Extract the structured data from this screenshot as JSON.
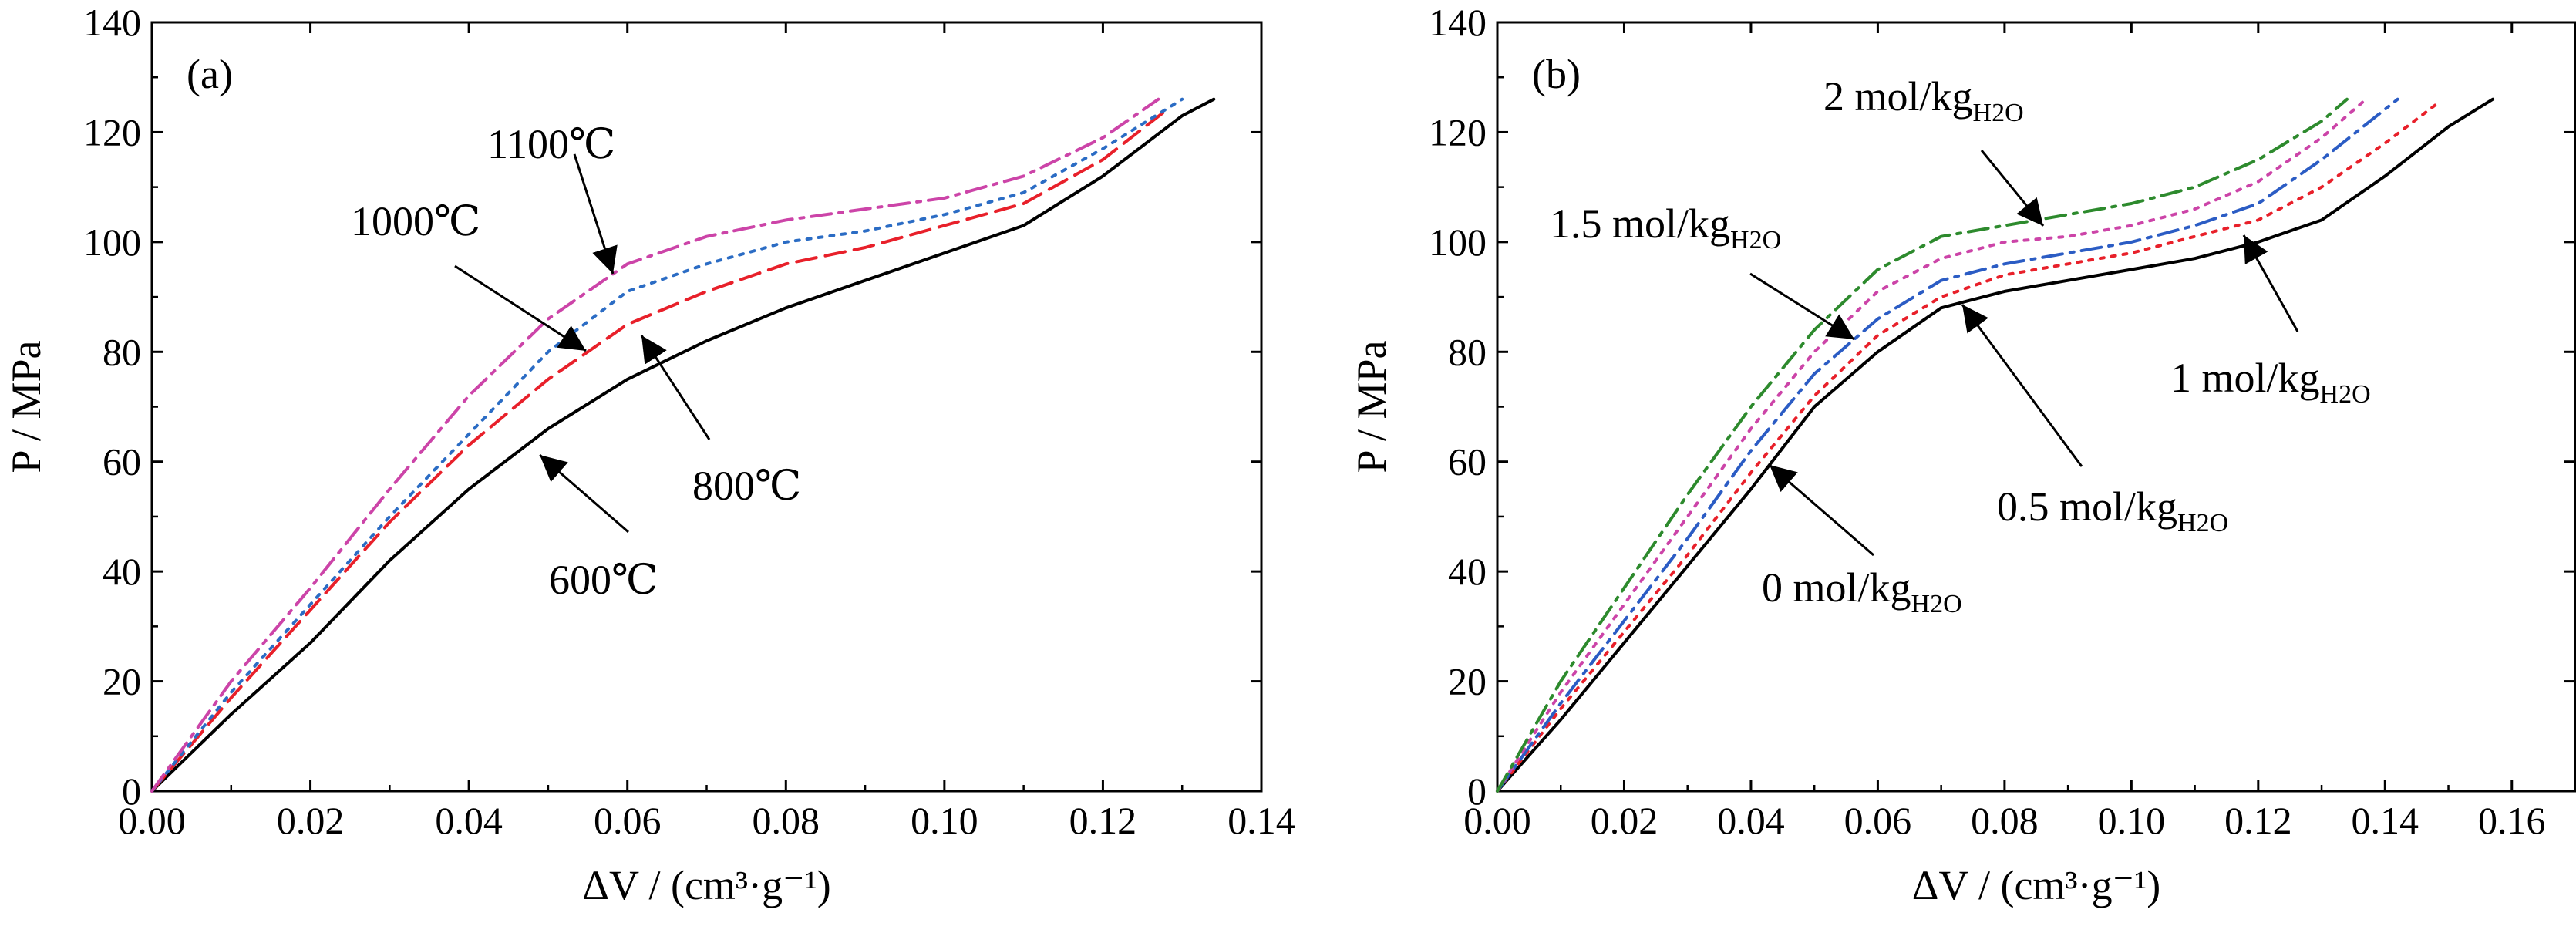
{
  "chart_data": [
    {
      "type": "line",
      "panel_label": "(a)",
      "xlabel": "ΔV / (cm³·g⁻¹)",
      "ylabel": "P / MPa",
      "xlim": [
        0,
        0.14
      ],
      "ylim": [
        0,
        140
      ],
      "xticks": [
        "0.00",
        "0.02",
        "0.04",
        "0.06",
        "0.08",
        "0.10",
        "0.12",
        "0.14"
      ],
      "yticks": [
        "0",
        "20",
        "40",
        "60",
        "80",
        "100",
        "120",
        "140"
      ],
      "grid": false,
      "series": [
        {
          "name": "600℃",
          "color": "#000000",
          "dash": "solid",
          "x": [
            0,
            0.01,
            0.02,
            0.03,
            0.04,
            0.05,
            0.06,
            0.07,
            0.08,
            0.09,
            0.1,
            0.11,
            0.12,
            0.13,
            0.134
          ],
          "y": [
            0,
            14,
            27,
            42,
            55,
            66,
            75,
            82,
            88,
            93,
            98,
            103,
            112,
            123,
            126
          ]
        },
        {
          "name": "800℃",
          "color": "#e8202a",
          "dash": "dash",
          "x": [
            0,
            0.01,
            0.02,
            0.03,
            0.04,
            0.05,
            0.06,
            0.07,
            0.08,
            0.09,
            0.1,
            0.11,
            0.12,
            0.128
          ],
          "y": [
            0,
            17,
            33,
            49,
            63,
            75,
            85,
            91,
            96,
            99,
            103,
            107,
            115,
            124
          ]
        },
        {
          "name": "1000℃",
          "color": "#2b6cc4",
          "dash": "dot",
          "x": [
            0,
            0.01,
            0.02,
            0.03,
            0.04,
            0.05,
            0.06,
            0.07,
            0.08,
            0.09,
            0.1,
            0.11,
            0.12,
            0.13
          ],
          "y": [
            0,
            18,
            34,
            50,
            65,
            80,
            91,
            96,
            100,
            102,
            105,
            109,
            117,
            126
          ]
        },
        {
          "name": "1100℃",
          "color": "#cc44a8",
          "dash": "dashdot",
          "x": [
            0,
            0.01,
            0.02,
            0.03,
            0.04,
            0.05,
            0.06,
            0.07,
            0.08,
            0.09,
            0.1,
            0.11,
            0.12,
            0.127
          ],
          "y": [
            0,
            20,
            37,
            55,
            72,
            86,
            96,
            101,
            104,
            106,
            108,
            112,
            119,
            126
          ]
        }
      ],
      "annotations": [
        {
          "text": "1100℃",
          "series": "1100℃"
        },
        {
          "text": "1000℃",
          "series": "1000℃"
        },
        {
          "text": "800℃",
          "series": "800℃"
        },
        {
          "text": "600℃",
          "series": "600℃"
        }
      ]
    },
    {
      "type": "line",
      "panel_label": "(b)",
      "xlabel": "ΔV / (cm³·g⁻¹)",
      "ylabel": "P / MPa",
      "xlim": [
        0,
        0.17
      ],
      "ylim": [
        0,
        140
      ],
      "xticks": [
        "0.00",
        "0.02",
        "0.04",
        "0.06",
        "0.08",
        "0.10",
        "0.12",
        "0.14",
        "0.16"
      ],
      "yticks": [
        "0",
        "20",
        "40",
        "60",
        "80",
        "100",
        "120",
        "140"
      ],
      "grid": false,
      "series": [
        {
          "name": "0 mol/kgH2O",
          "color": "#000000",
          "dash": "solid",
          "x": [
            0,
            0.01,
            0.02,
            0.03,
            0.04,
            0.05,
            0.06,
            0.07,
            0.08,
            0.09,
            0.1,
            0.11,
            0.12,
            0.13,
            0.14,
            0.15,
            0.157
          ],
          "y": [
            0,
            13,
            27,
            41,
            55,
            70,
            80,
            88,
            91,
            93,
            95,
            97,
            100,
            104,
            112,
            121,
            126
          ]
        },
        {
          "name": "0.5 mol/kgH2O",
          "color": "#e8202a",
          "dash": "dot",
          "x": [
            0,
            0.01,
            0.02,
            0.03,
            0.04,
            0.05,
            0.06,
            0.07,
            0.08,
            0.09,
            0.1,
            0.11,
            0.12,
            0.13,
            0.14,
            0.148
          ],
          "y": [
            0,
            15,
            29,
            43,
            58,
            72,
            83,
            90,
            94,
            96,
            98,
            101,
            104,
            110,
            118,
            125
          ]
        },
        {
          "name": "1 mol/kgH2O",
          "color": "#2b5cc4",
          "dash": "dashdot",
          "x": [
            0,
            0.01,
            0.02,
            0.03,
            0.04,
            0.05,
            0.06,
            0.07,
            0.08,
            0.09,
            0.1,
            0.11,
            0.12,
            0.13,
            0.142
          ],
          "y": [
            0,
            16,
            31,
            46,
            62,
            76,
            86,
            93,
            96,
            98,
            100,
            103,
            107,
            115,
            126
          ]
        },
        {
          "name": "1.5 mol/kgH2O",
          "color": "#cc44a8",
          "dash": "dot",
          "x": [
            0,
            0.01,
            0.02,
            0.03,
            0.04,
            0.05,
            0.06,
            0.07,
            0.08,
            0.09,
            0.1,
            0.11,
            0.12,
            0.13,
            0.137
          ],
          "y": [
            0,
            18,
            34,
            50,
            66,
            80,
            91,
            97,
            100,
            101,
            103,
            106,
            111,
            119,
            126
          ]
        },
        {
          "name": "2 mol/kgH2O",
          "color": "#2d8a2d",
          "dash": "dashdot",
          "x": [
            0,
            0.01,
            0.02,
            0.03,
            0.04,
            0.05,
            0.06,
            0.07,
            0.08,
            0.09,
            0.1,
            0.11,
            0.12,
            0.13,
            0.134
          ],
          "y": [
            0,
            20,
            37,
            54,
            70,
            84,
            95,
            101,
            103,
            105,
            107,
            110,
            115,
            122,
            126
          ]
        }
      ],
      "annotations": [
        {
          "text": "2 mol/kg",
          "sub": "H2O",
          "series": "2 mol/kgH2O"
        },
        {
          "text": "1.5 mol/kg",
          "sub": "H2O",
          "series": "1.5 mol/kgH2O"
        },
        {
          "text": "1 mol/kg",
          "sub": "H2O",
          "series": "1 mol/kgH2O"
        },
        {
          "text": "0.5 mol/kg",
          "sub": "H2O",
          "series": "0.5 mol/kgH2O"
        },
        {
          "text": "0 mol/kg",
          "sub": "H2O",
          "series": "0 mol/kgH2O"
        }
      ]
    }
  ]
}
